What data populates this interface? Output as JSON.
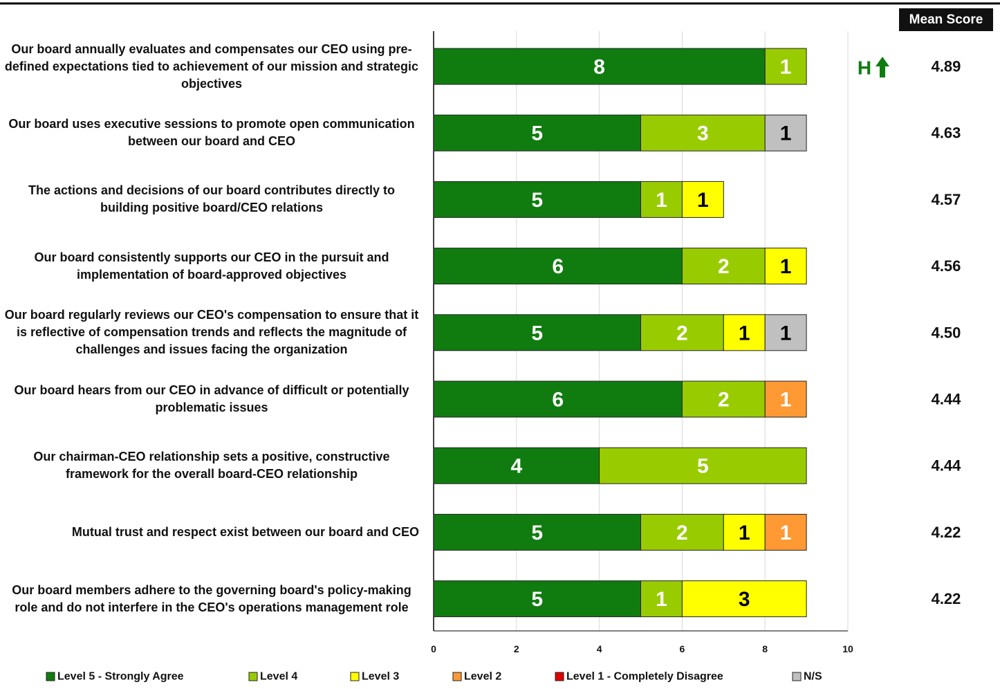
{
  "chart_data": {
    "type": "stacked-bar-horizontal",
    "categories": [
      "Our board annually evaluates and compensates our CEO using pre-defined expectations tied to achievement of our mission and strategic objectives",
      "Our board uses executive sessions to promote open communication between our board and CEO",
      "The actions and decisions of our board contributes directly to building positive board/CEO relations",
      "Our board consistently supports our CEO in the pursuit and implementation of board-approved objectives",
      "Our board regularly reviews our CEO's compensation to ensure that it is reflective of compensation trends and reflects the magnitude of challenges and issues facing the organization",
      "Our board hears from our CEO in advance of difficult or potentially problematic issues",
      "Our chairman-CEO relationship sets a positive, constructive framework for the overall board-CEO relationship",
      "Mutual trust and respect exist between our board and CEO",
      "Our board members adhere to the governing board's policy-making role and do not interfere in the CEO's operations management role"
    ],
    "series": [
      {
        "name": "Level 5 - Strongly Agree",
        "color": "#107c10",
        "label_color": "#ffffff",
        "values": [
          8,
          5,
          5,
          6,
          5,
          6,
          4,
          5,
          5
        ]
      },
      {
        "name": "Level 4",
        "color": "#99cc00",
        "label_color": "#ffffff",
        "values": [
          1,
          3,
          1,
          2,
          2,
          2,
          5,
          2,
          1
        ]
      },
      {
        "name": "Level 3",
        "color": "#ffff00",
        "label_color": "#000000",
        "values": [
          null,
          null,
          1,
          1,
          1,
          null,
          null,
          1,
          3
        ]
      },
      {
        "name": "Level 2",
        "color": "#ff9933",
        "label_color": "#ffffff",
        "values": [
          null,
          null,
          null,
          null,
          null,
          1,
          null,
          1,
          null
        ]
      },
      {
        "name": "Level 1 - Completely Disagree",
        "color": "#e00000",
        "label_color": "#ffffff",
        "values": [
          null,
          null,
          null,
          null,
          null,
          null,
          null,
          null,
          null
        ]
      },
      {
        "name": "N/S",
        "color": "#c0c0c0",
        "label_color": "#000000",
        "values": [
          null,
          1,
          null,
          null,
          1,
          null,
          null,
          null,
          null
        ]
      }
    ],
    "xlim": [
      0,
      10
    ],
    "xticks": [
      0,
      2,
      4,
      6,
      8,
      10
    ],
    "grid": true,
    "mean_score": {
      "title": "Mean Score",
      "values": [
        4.89,
        4.63,
        4.57,
        4.56,
        4.5,
        4.44,
        4.44,
        4.22,
        4.22
      ],
      "value_labels": [
        "4.89",
        "4.63",
        "4.57",
        "4.56",
        "4.50",
        "4.44",
        "4.44",
        "4.22",
        "4.22"
      ]
    },
    "annotations": [
      {
        "text": "H",
        "category": "Our board annually evaluates and compensates our CEO using pre-defined expectations tied to achievement of our mission and strategic objectives",
        "color": "#107c10"
      }
    ]
  }
}
